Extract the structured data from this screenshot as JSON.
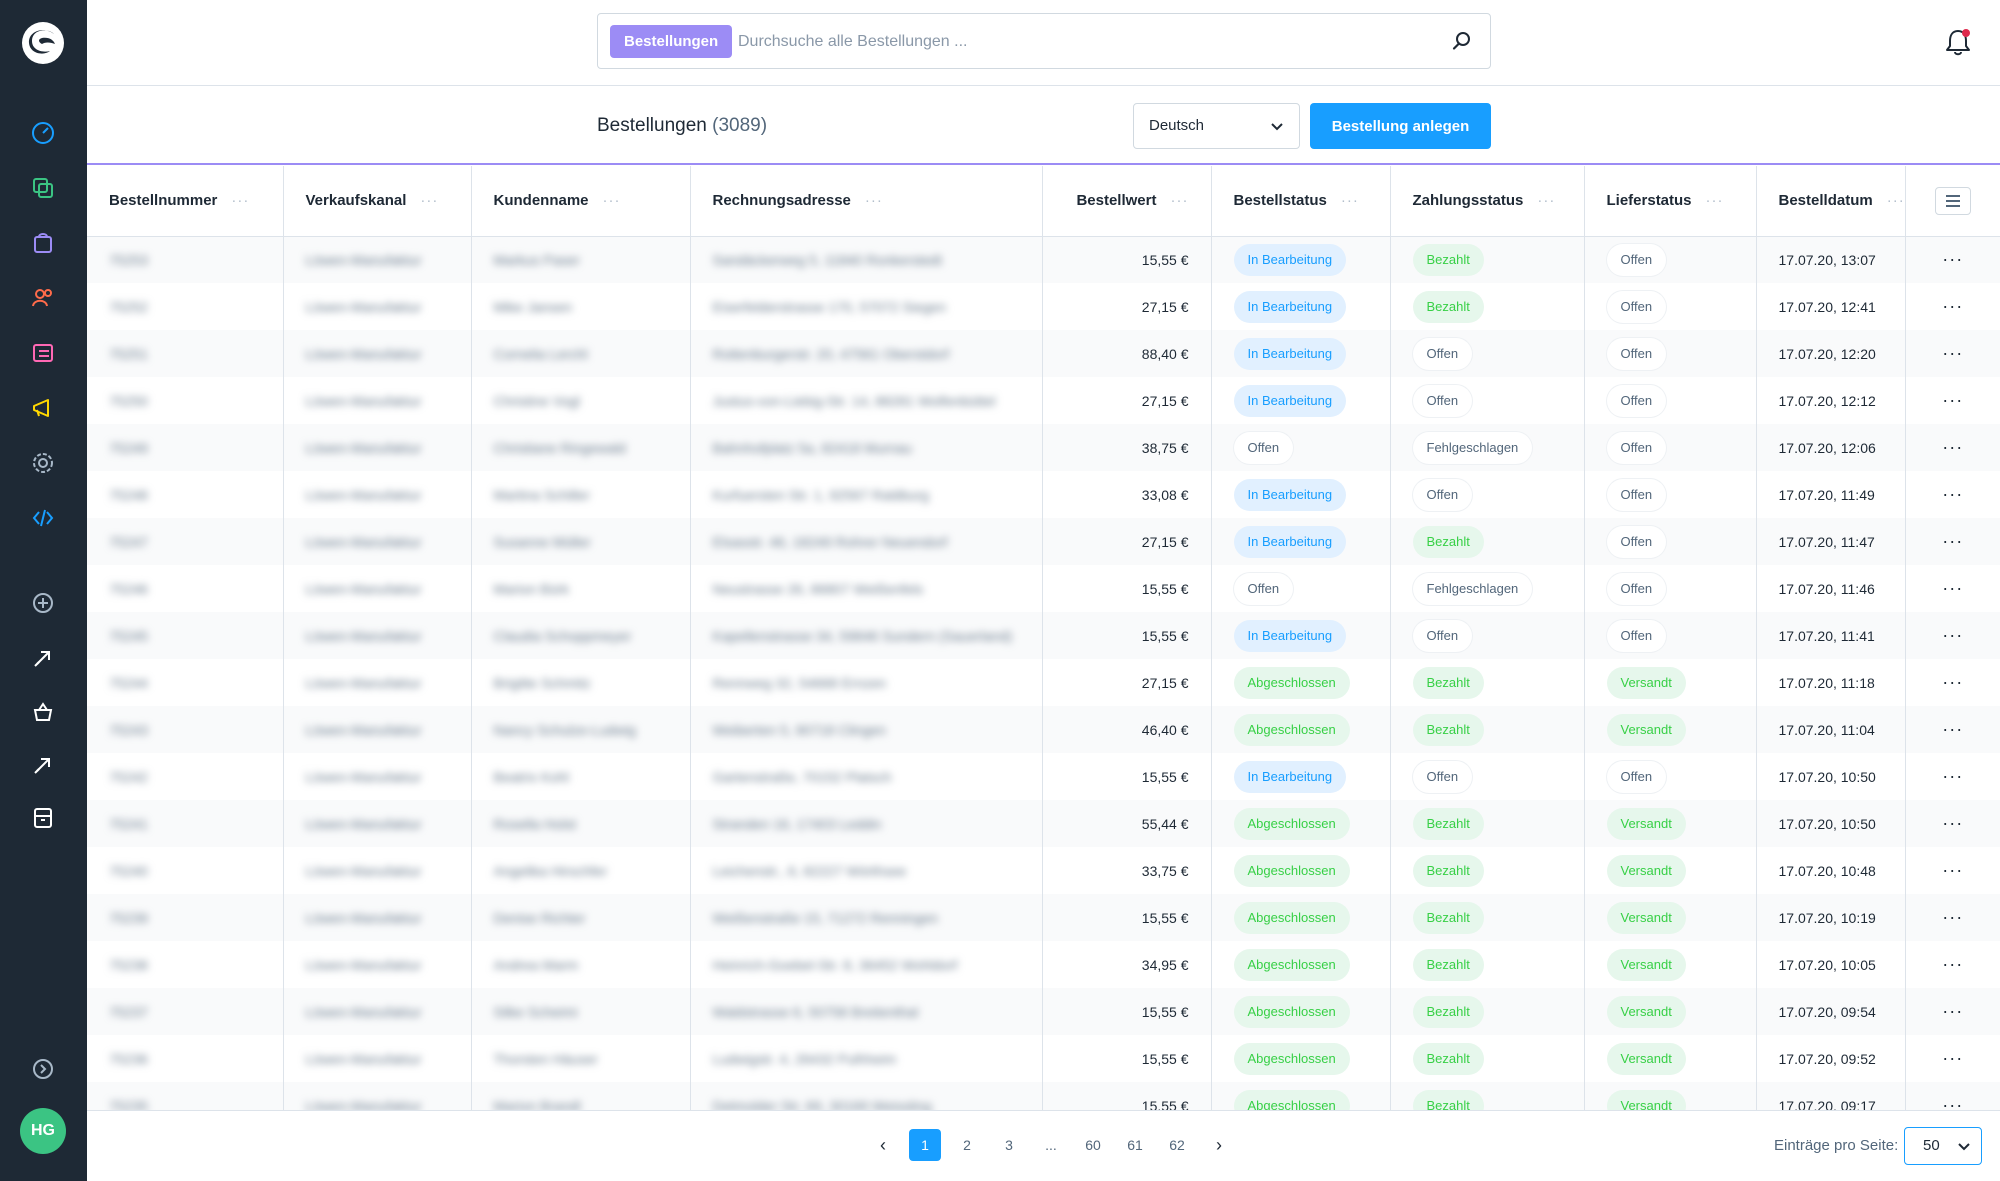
{
  "search": {
    "tag": "Bestellungen",
    "placeholder": "Durchsuche alle Bestellungen ..."
  },
  "header": {
    "title": "Bestellungen",
    "count": "(3089)",
    "language": "Deutsch",
    "create_label": "Bestellung anlegen"
  },
  "sidebar": {
    "avatar": "HG",
    "icons": [
      "dashboard-icon",
      "catalog-icon",
      "orders-icon",
      "customers-icon",
      "content-icon",
      "marketing-icon",
      "settings-icon",
      "extensions-icon",
      "add-sales-channel-icon",
      "storefront-icon",
      "shop-icon",
      "headless-icon",
      "pos-icon",
      "collapse-icon"
    ]
  },
  "columns": [
    "Bestellnummer",
    "Verkaufskanal",
    "Kundenname",
    "Rechnungsadresse",
    "Bestellwert",
    "Bestellstatus",
    "Zahlungsstatus",
    "Lieferstatus",
    "Bestelldatum"
  ],
  "column_dots": "···",
  "rows": [
    {
      "nr": "75253",
      "channel": "Löwen-Manufaktur",
      "name": "Markus Paser",
      "address": "Sandäckerweg 5, 11840 Ronkerstedt",
      "total": "15,55 €",
      "status": "In Bearbeitung",
      "payment": "Bezahlt",
      "delivery": "Offen",
      "date": "17.07.20, 13:07"
    },
    {
      "nr": "75252",
      "channel": "Löwen-Manufaktur",
      "name": "Mike Jansen",
      "address": "Eiserfelderstrasse 170, 57072 Siegen",
      "total": "27,15 €",
      "status": "In Bearbeitung",
      "payment": "Bezahlt",
      "delivery": "Offen",
      "date": "17.07.20, 12:41"
    },
    {
      "nr": "75251",
      "channel": "Löwen-Manufaktur",
      "name": "Cornelia Lerchl",
      "address": "Rottenburgerstr. 20, 47561 Oberstdorf",
      "total": "88,40 €",
      "status": "In Bearbeitung",
      "payment": "Offen",
      "delivery": "Offen",
      "date": "17.07.20, 12:20"
    },
    {
      "nr": "75250",
      "channel": "Löwen-Manufaktur",
      "name": "Christine Vogl",
      "address": "Justus-von-Liebig-Str. 14, 88281 Wolfenbüttel",
      "total": "27,15 €",
      "status": "In Bearbeitung",
      "payment": "Offen",
      "delivery": "Offen",
      "date": "17.07.20, 12:12"
    },
    {
      "nr": "75249",
      "channel": "Löwen-Manufaktur",
      "name": "Christiane Ringewald",
      "address": "Bahnhofplatz 5a, 82418 Murnau",
      "total": "38,75 €",
      "status": "Offen",
      "payment": "Fehlgeschlagen",
      "delivery": "Offen",
      "date": "17.07.20, 12:06"
    },
    {
      "nr": "75248",
      "channel": "Löwen-Manufaktur",
      "name": "Martina Schiller",
      "address": "Kurfuersten Str. 1, 92567 Raldburg",
      "total": "33,08 €",
      "status": "In Bearbeitung",
      "payment": "Offen",
      "delivery": "Offen",
      "date": "17.07.20, 11:49"
    },
    {
      "nr": "75247",
      "channel": "Löwen-Manufaktur",
      "name": "Susanne Müller",
      "address": "Elsasstr. 46, 18249 Rohrer Neuendorf",
      "total": "27,15 €",
      "status": "In Bearbeitung",
      "payment": "Bezahlt",
      "delivery": "Offen",
      "date": "17.07.20, 11:47"
    },
    {
      "nr": "75246",
      "channel": "Löwen-Manufaktur",
      "name": "Marion Bürk",
      "address": "Neustrasse 26, 86807 Weißenfels",
      "total": "15,55 €",
      "status": "Offen",
      "payment": "Fehlgeschlagen",
      "delivery": "Offen",
      "date": "17.07.20, 11:46"
    },
    {
      "nr": "75245",
      "channel": "Löwen-Manufaktur",
      "name": "Claudia Schoppmeyer",
      "address": "Kapellenstrasse 34, 59846 Sundern (Sauerland)",
      "total": "15,55 €",
      "status": "In Bearbeitung",
      "payment": "Offen",
      "delivery": "Offen",
      "date": "17.07.20, 11:41"
    },
    {
      "nr": "75244",
      "channel": "Löwen-Manufaktur",
      "name": "Brigitte Schmitz",
      "address": "Rennweg 32, 54668 Ernzen",
      "total": "27,15 €",
      "status": "Abgeschlossen",
      "payment": "Bezahlt",
      "delivery": "Versandt",
      "date": "17.07.20, 11:18"
    },
    {
      "nr": "75243",
      "channel": "Löwen-Manufaktur",
      "name": "Nancy Schulze-Ludwig",
      "address": "Weiberten 5, 90718 Clingen",
      "total": "46,40 €",
      "status": "Abgeschlossen",
      "payment": "Bezahlt",
      "delivery": "Versandt",
      "date": "17.07.20, 11:04"
    },
    {
      "nr": "75242",
      "channel": "Löwen-Manufaktur",
      "name": "Beatrix Kohl",
      "address": "Gartenstraße, 70152 Platsch",
      "total": "15,55 €",
      "status": "In Bearbeitung",
      "payment": "Offen",
      "delivery": "Offen",
      "date": "17.07.20, 10:50"
    },
    {
      "nr": "75241",
      "channel": "Löwen-Manufaktur",
      "name": "Rosella Holst",
      "address": "Stranden 16, 17403 Leddin",
      "total": "55,44 €",
      "status": "Abgeschlossen",
      "payment": "Bezahlt",
      "delivery": "Versandt",
      "date": "17.07.20, 10:50"
    },
    {
      "nr": "75240",
      "channel": "Löwen-Manufaktur",
      "name": "Angelika Hirschfer",
      "address": "Leichenstr., 6, 82227 Wörthsee",
      "total": "33,75 €",
      "status": "Abgeschlossen",
      "payment": "Bezahlt",
      "delivery": "Versandt",
      "date": "17.07.20, 10:48"
    },
    {
      "nr": "75239",
      "channel": "Löwen-Manufaktur",
      "name": "Denise Richter",
      "address": "Weißenstraße 15, 71272 Renningen",
      "total": "15,55 €",
      "status": "Abgeschlossen",
      "payment": "Bezahlt",
      "delivery": "Versandt",
      "date": "17.07.20, 10:19"
    },
    {
      "nr": "75238",
      "channel": "Löwen-Manufaktur",
      "name": "Andrea Marm",
      "address": "Heinrich-Goebel-Str. 8, 36452 Wohldorf",
      "total": "34,95 €",
      "status": "Abgeschlossen",
      "payment": "Bezahlt",
      "delivery": "Versandt",
      "date": "17.07.20, 10:05"
    },
    {
      "nr": "75237",
      "channel": "Löwen-Manufaktur",
      "name": "Silke Scheimi",
      "address": "Waldstrasse 6, 50758 Breitenthal",
      "total": "15,55 €",
      "status": "Abgeschlossen",
      "payment": "Bezahlt",
      "delivery": "Versandt",
      "date": "17.07.20, 09:54"
    },
    {
      "nr": "75236",
      "channel": "Löwen-Manufaktur",
      "name": "Thorsten Häuser",
      "address": "Ludwigstr. 4, 26432 Pulhheim",
      "total": "15,55 €",
      "status": "Abgeschlossen",
      "payment": "Bezahlt",
      "delivery": "Versandt",
      "date": "17.07.20, 09:52"
    },
    {
      "nr": "75235",
      "channel": "Löwen-Manufaktur",
      "name": "Marion Brandl",
      "address": "Detmolder Str. 69, 30169 Weissling",
      "total": "15,55 €",
      "status": "Abgeschlossen",
      "payment": "Bezahlt",
      "delivery": "Versandt",
      "date": "17.07.20, 09:17"
    }
  ],
  "row_actions_label": "···",
  "pagination": {
    "pages": [
      "1",
      "2",
      "3",
      "...",
      "60",
      "61",
      "62"
    ],
    "current": "1",
    "prev": "‹",
    "next": "›"
  },
  "per_page": {
    "label": "Einträge pro Seite:",
    "value": "50"
  },
  "colors": {
    "sidebar": "#1e2935",
    "primary": "#189eff",
    "accent": "#9c8cf5",
    "success": "#37d046",
    "avatar": "#3bc483"
  },
  "status_styles": {
    "In Bearbeitung": "blue",
    "Abgeschlossen": "green",
    "Bezahlt": "green",
    "Versandt": "green",
    "Offen": "neutral",
    "Fehlgeschlagen": "neutral"
  }
}
